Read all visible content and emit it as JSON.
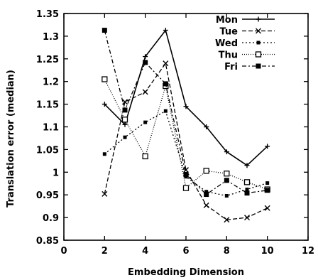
{
  "chart_data": {
    "type": "line",
    "title": "",
    "xlabel": "Embedding Dimension",
    "ylabel": "Translation error (median)",
    "xlim": [
      0,
      12
    ],
    "ylim": [
      0.85,
      1.35
    ],
    "xticks": [
      "0",
      "2",
      "4",
      "6",
      "8",
      "10",
      "12"
    ],
    "yticks": [
      "0.85",
      "0.9",
      "0.95",
      "1",
      "1.05",
      "1.1",
      "1.15",
      "1.2",
      "1.25",
      "1.3",
      "1.35"
    ],
    "grid": false,
    "legend_position": "top-right",
    "x": [
      2,
      3,
      4,
      5,
      6,
      7,
      8,
      9,
      10
    ],
    "series": [
      {
        "name": "Mon",
        "marker": "plus",
        "dash": "solid",
        "values": [
          1.15,
          1.105,
          1.255,
          1.313,
          1.145,
          1.1,
          1.045,
          1.015,
          1.057
        ]
      },
      {
        "name": "Tue",
        "marker": "x",
        "dash": "dashed",
        "values": [
          0.952,
          1.155,
          1.177,
          1.24,
          1.005,
          0.927,
          0.895,
          0.9,
          0.921
        ]
      },
      {
        "name": "Wed",
        "marker": "small-square",
        "dash": "dotted",
        "values": [
          1.04,
          1.077,
          1.11,
          1.135,
          0.99,
          0.957,
          0.948,
          0.962,
          0.976
        ]
      },
      {
        "name": "Thu",
        "marker": "open-square",
        "dash": "fine-dotted",
        "values": [
          1.205,
          1.116,
          1.035,
          1.19,
          0.965,
          1.003,
          0.997,
          0.978,
          0.962
        ]
      },
      {
        "name": "Fri",
        "marker": "filled-square",
        "dash": "dash-dot",
        "values": [
          1.313,
          1.137,
          1.242,
          1.195,
          0.995,
          0.951,
          0.982,
          0.954,
          0.96
        ]
      }
    ]
  }
}
